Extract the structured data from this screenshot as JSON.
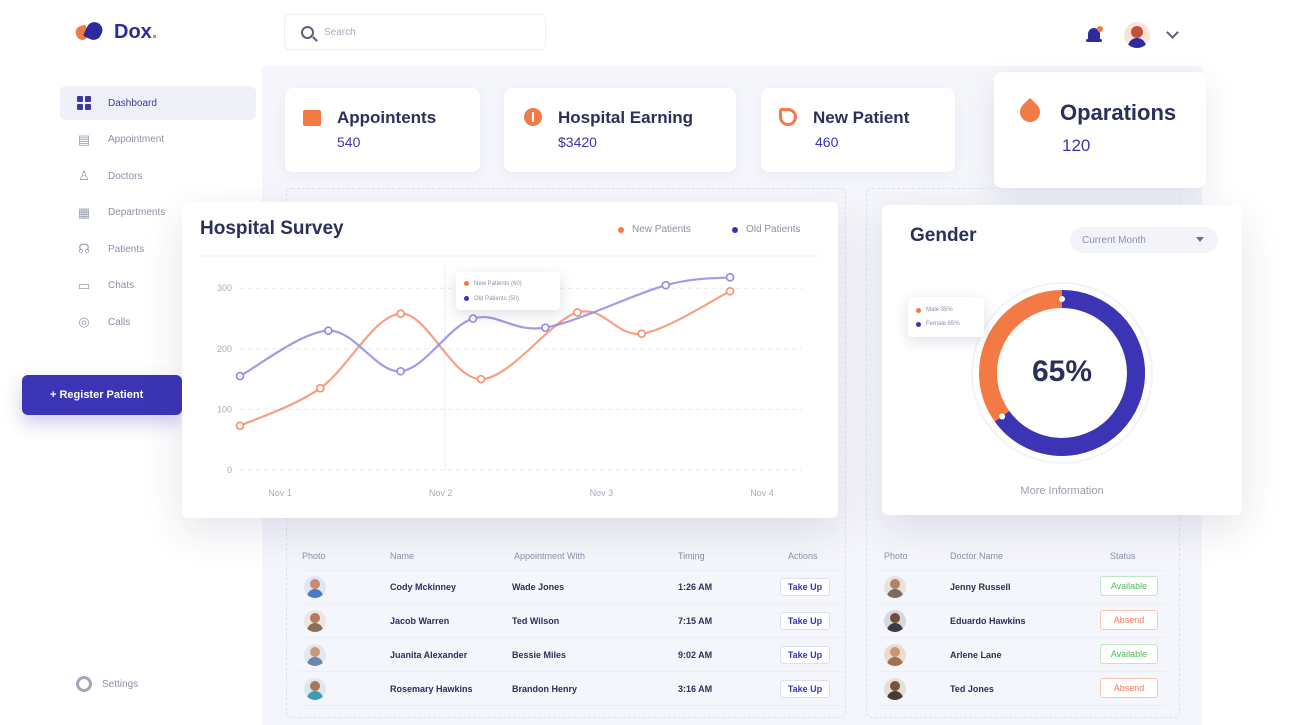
{
  "app": {
    "logo_text": "Dox",
    "logo_dot": "."
  },
  "sidebar": {
    "items": [
      {
        "label": "Dashboard",
        "icon": "dashboard-grid-icon"
      },
      {
        "label": "Appointment",
        "icon": "calendar-icon"
      },
      {
        "label": "Doctors",
        "icon": "doctor-icon"
      },
      {
        "label": "Departments",
        "icon": "building-icon"
      },
      {
        "label": "Patients",
        "icon": "patient-icon"
      },
      {
        "label": "Chats",
        "icon": "chat-icon"
      },
      {
        "label": "Calls",
        "icon": "phone-icon"
      }
    ],
    "register_label": "+ Register Patient",
    "settings_label": "Settings"
  },
  "header": {
    "search_placeholder": "Search"
  },
  "stats": [
    {
      "title": "Appointents",
      "value": "540",
      "icon": "calendar-icon"
    },
    {
      "title": "Hospital Earning",
      "value": "$3420",
      "icon": "coin-icon"
    },
    {
      "title": "New Patient",
      "value": "460",
      "icon": "hand-icon"
    },
    {
      "title": "Oparations",
      "value": "120",
      "icon": "drop-icon"
    }
  ],
  "survey": {
    "title": "Hospital Survey",
    "legend_new": "New Patients",
    "legend_old": "Old Patients",
    "tooltip_new": "New Patients (60)",
    "tooltip_old": "Old Patients (50)"
  },
  "chart_data": {
    "type": "line",
    "x": [
      "Nov 1",
      "Nov 2",
      "Nov 3",
      "Nov 4"
    ],
    "yticks": [
      0,
      100,
      200,
      300
    ],
    "ylim": [
      0,
      340
    ],
    "series": [
      {
        "name": "New Patients",
        "color": "#f4906a",
        "points": [
          [
            0,
            73
          ],
          [
            0.5,
            135
          ],
          [
            1,
            258
          ],
          [
            1.5,
            150
          ],
          [
            2.1,
            260
          ],
          [
            2.5,
            225
          ],
          [
            3.05,
            295
          ]
        ]
      },
      {
        "name": "Old Patients",
        "color": "#8f8ae6",
        "points": [
          [
            0,
            155
          ],
          [
            0.55,
            230
          ],
          [
            1,
            163
          ],
          [
            1.45,
            250
          ],
          [
            1.9,
            235
          ],
          [
            2.65,
            305
          ],
          [
            3.05,
            318
          ]
        ]
      }
    ],
    "grid": true,
    "legend": "top-right"
  },
  "gender": {
    "title": "Gender",
    "period": "Current Month",
    "percent_label": "65%",
    "female_percent": 65,
    "tooltip_male": "Male 35%",
    "tooltip_female": "Female 65%",
    "more_info": "More Information",
    "colors": {
      "female": "#3b35b5",
      "male": "#f47a45"
    }
  },
  "appointments": {
    "headers": [
      "Photo",
      "Name",
      "Appointment With",
      "Timing",
      "Actions"
    ],
    "action_label": "Take Up",
    "rows": [
      {
        "name": "Cody Mckinney",
        "with": "Wade Jones",
        "timing": "1:26 AM"
      },
      {
        "name": "Jacob Warren",
        "with": "Ted Wilson",
        "timing": "7:15 AM"
      },
      {
        "name": "Juanita Alexander",
        "with": "Bessie Miles",
        "timing": "9:02 AM"
      },
      {
        "name": "Rosemary Hawkins",
        "with": "Brandon Henry",
        "timing": "3:16 AM"
      }
    ]
  },
  "doctors": {
    "headers": [
      "Photo",
      "Doctor Name",
      "Status"
    ],
    "rows": [
      {
        "name": "Jenny Russell",
        "status": "Available"
      },
      {
        "name": "Eduardo Hawkins",
        "status": "Absend"
      },
      {
        "name": "Arlene Lane",
        "status": "Available"
      },
      {
        "name": "Ted Jones",
        "status": "Absend"
      }
    ]
  }
}
